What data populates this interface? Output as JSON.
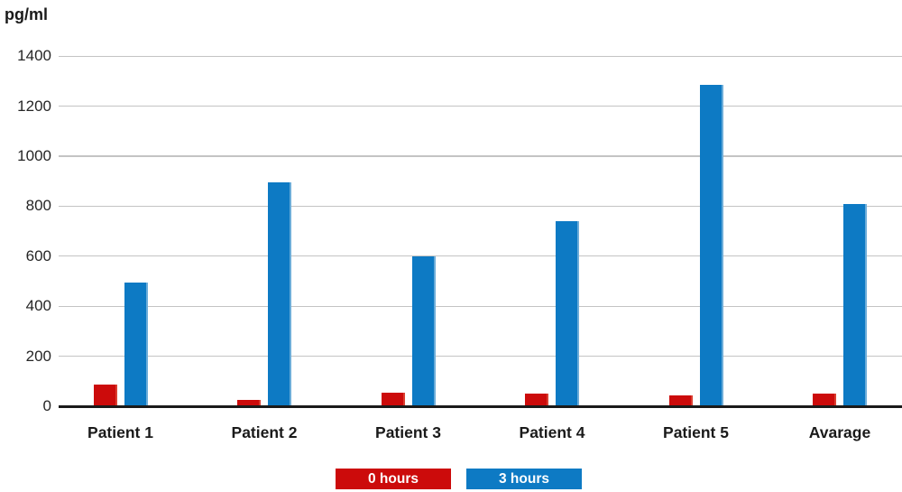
{
  "chart_data": {
    "type": "bar",
    "title": "",
    "ylabel": "pg/ml",
    "xlabel": "",
    "categories": [
      "Patient 1",
      "Patient 2",
      "Patient 3",
      "Patient 4",
      "Patient 5",
      "Avarage"
    ],
    "series": [
      {
        "name": "0 hours",
        "values": [
          85,
          25,
          55,
          50,
          45,
          52
        ],
        "color": "#cc0b0b",
        "edge_color": "#da3e30"
      },
      {
        "name": "3 hours",
        "values": [
          495,
          895,
          600,
          740,
          1285,
          810
        ],
        "color": "#0d7ac4",
        "edge_color": "#6cadd9"
      }
    ],
    "ylim": [
      0,
      1400
    ],
    "yticks": [
      0,
      200,
      400,
      600,
      800,
      1000,
      1200,
      1400
    ],
    "grid": "horizontal",
    "legend_position": "bottom"
  },
  "colors": {
    "background": "#ffffff",
    "gridline": "#c4c4c4",
    "axis": "#1a1a1a",
    "tick_text": "#262626",
    "category_text": "#1a1a1a",
    "legend_text": "#ffffff"
  }
}
